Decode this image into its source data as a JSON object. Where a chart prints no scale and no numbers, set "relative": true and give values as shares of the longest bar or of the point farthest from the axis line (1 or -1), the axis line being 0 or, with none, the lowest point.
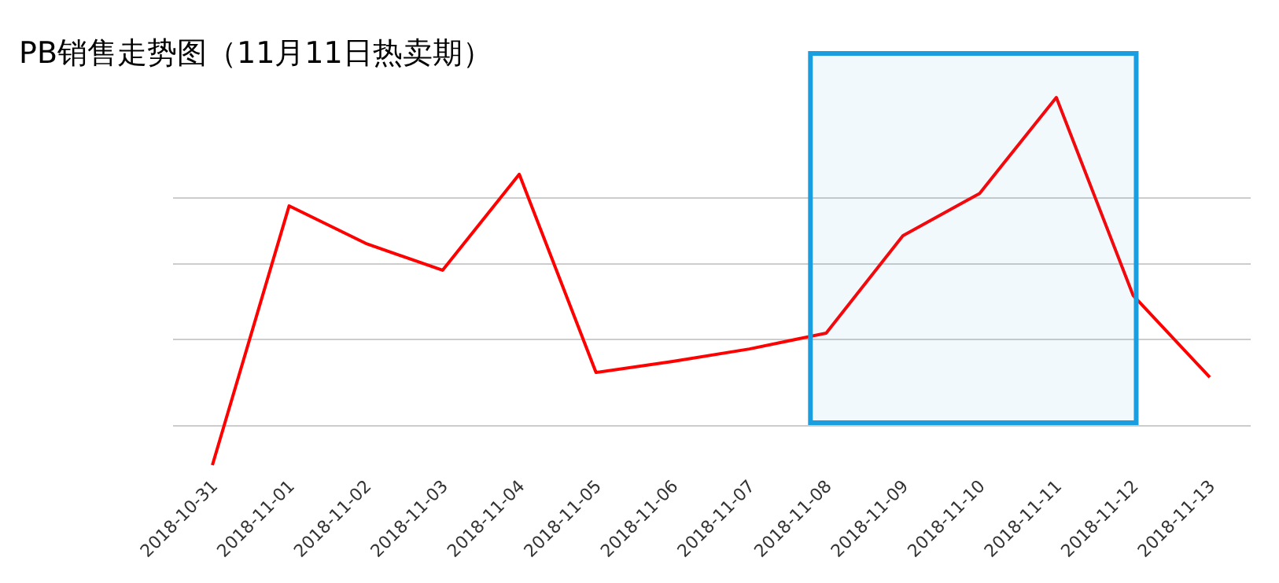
{
  "chart_data": {
    "type": "line",
    "title": "PB销售走势图（11月11日热卖期）",
    "relative": true,
    "grid": "y",
    "marker": "none",
    "line_style": "solid",
    "categories": [
      "2018-10-31",
      "2018-11-01",
      "2018-11-02",
      "2018-11-03",
      "2018-11-04",
      "2018-11-05",
      "2018-11-06",
      "2018-11-07",
      "2018-11-08",
      "2018-11-09",
      "2018-11-10",
      "2018-11-11",
      "2018-11-12",
      "2018-11-13"
    ],
    "series": [
      {
        "color": "#ff0000",
        "values": [
          0,
          0.705,
          0.603,
          0.53,
          0.791,
          0.252,
          0.282,
          0.316,
          0.359,
          0.624,
          0.739,
          1,
          0.462,
          0.239
        ]
      }
    ],
    "bands": [
      {
        "axis": "x",
        "from": "2018-11-08",
        "to": "2018-11-12",
        "color": "#1a9ee0"
      }
    ]
  }
}
